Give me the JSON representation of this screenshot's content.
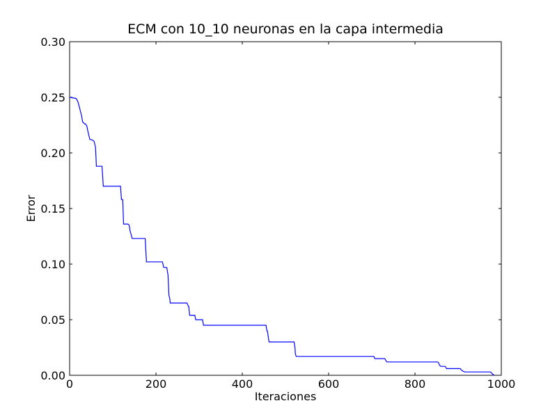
{
  "chart_data": {
    "type": "line",
    "title": "ECM con 10_10 neuronas en la capa intermedia",
    "xlabel": "Iteraciones",
    "ylabel": "Error",
    "xlim": [
      0,
      1000
    ],
    "ylim": [
      0,
      0.3
    ],
    "xticks": [
      "0",
      "200",
      "400",
      "600",
      "800",
      "1000"
    ],
    "yticks": [
      "0.00",
      "0.05",
      "0.10",
      "0.15",
      "0.20",
      "0.25",
      "0.30"
    ],
    "grid": false,
    "legend": "none",
    "series": [
      {
        "color": "#0000ff",
        "x": [
          0,
          15,
          18,
          20,
          22,
          24,
          26,
          28,
          30,
          35,
          37,
          40,
          42,
          45,
          47,
          50,
          55,
          57,
          60,
          62,
          70,
          75,
          78,
          118,
          120,
          123,
          125,
          135,
          138,
          140,
          145,
          175,
          178,
          215,
          218,
          225,
          228,
          230,
          232,
          233,
          235,
          272,
          275,
          276,
          278,
          290,
          292,
          308,
          310,
          453,
          455,
          457,
          458,
          460,
          462,
          520,
          522,
          523,
          525,
          705,
          707,
          730,
          733,
          735,
          853,
          855,
          857,
          860,
          870,
          872,
          873,
          875,
          905,
          907,
          910,
          915,
          918,
          920,
          935,
          975,
          980,
          984
        ],
        "y": [
          0.25,
          0.249,
          0.247,
          0.245,
          0.242,
          0.239,
          0.236,
          0.233,
          0.228,
          0.226,
          0.226,
          0.224,
          0.22,
          0.215,
          0.212,
          0.212,
          0.211,
          0.21,
          0.205,
          0.188,
          0.188,
          0.188,
          0.17,
          0.17,
          0.158,
          0.158,
          0.136,
          0.136,
          0.135,
          0.13,
          0.123,
          0.123,
          0.102,
          0.102,
          0.097,
          0.097,
          0.09,
          0.072,
          0.069,
          0.065,
          0.065,
          0.065,
          0.062,
          0.062,
          0.054,
          0.054,
          0.05,
          0.05,
          0.045,
          0.045,
          0.045,
          0.04,
          0.04,
          0.035,
          0.03,
          0.03,
          0.025,
          0.019,
          0.017,
          0.017,
          0.015,
          0.015,
          0.013,
          0.012,
          0.012,
          0.011,
          0.009,
          0.008,
          0.008,
          0.007,
          0.006,
          0.006,
          0.006,
          0.005,
          0.004,
          0.003,
          0.003,
          0.003,
          0.003,
          0.003,
          0.001,
          0.0
        ]
      }
    ]
  }
}
